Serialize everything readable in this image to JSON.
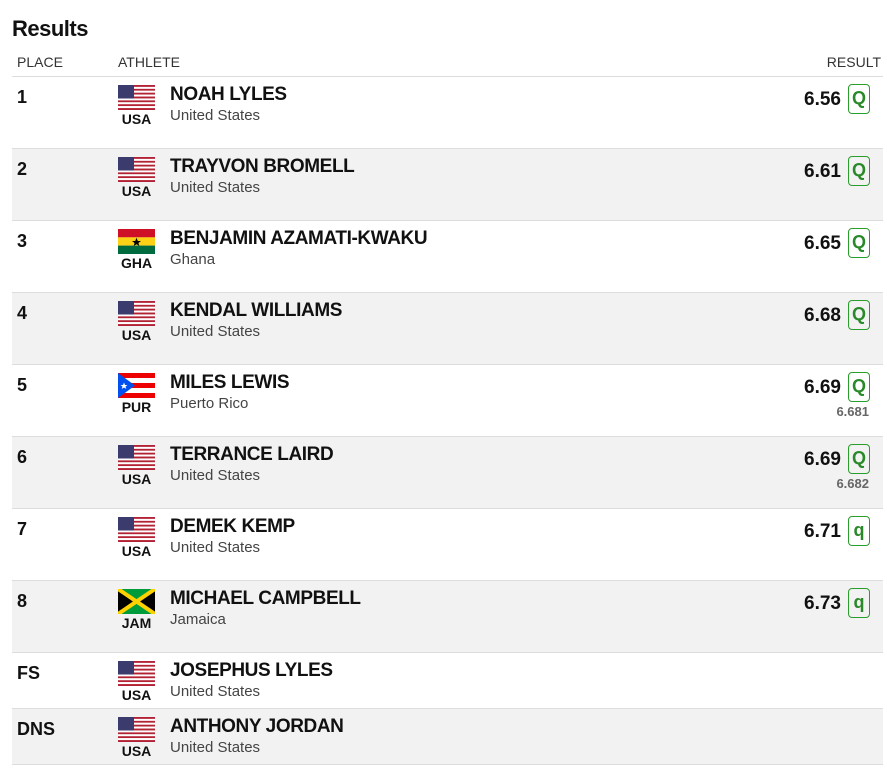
{
  "header": {
    "title": "Results"
  },
  "table": {
    "columns": [
      "PLACE",
      "ATHLETE",
      "RESULT"
    ],
    "rows": [
      {
        "place": "1",
        "code": "USA",
        "name": "NOAH LYLES",
        "country": "United States",
        "result": "6.56",
        "qualifier": "Q"
      },
      {
        "place": "2",
        "code": "USA",
        "name": "TRAYVON BROMELL",
        "country": "United States",
        "result": "6.61",
        "qualifier": "Q"
      },
      {
        "place": "3",
        "code": "GHA",
        "name": "BENJAMIN AZAMATI-KWAKU",
        "country": "Ghana",
        "result": "6.65",
        "qualifier": "Q"
      },
      {
        "place": "4",
        "code": "USA",
        "name": "KENDAL WILLIAMS",
        "country": "United States",
        "result": "6.68",
        "qualifier": "Q"
      },
      {
        "place": "5",
        "code": "PUR",
        "name": "MILES LEWIS",
        "country": "Puerto Rico",
        "result": "6.69",
        "qualifier": "Q",
        "tiebreak": "6.681"
      },
      {
        "place": "6",
        "code": "USA",
        "name": "TERRANCE LAIRD",
        "country": "United States",
        "result": "6.69",
        "qualifier": "Q",
        "tiebreak": "6.682"
      },
      {
        "place": "7",
        "code": "USA",
        "name": "DEMEK KEMP",
        "country": "United States",
        "result": "6.71",
        "qualifier": "q"
      },
      {
        "place": "8",
        "code": "JAM",
        "name": "MICHAEL CAMPBELL",
        "country": "Jamaica",
        "result": "6.73",
        "qualifier": "q"
      },
      {
        "place": "FS",
        "code": "USA",
        "name": "JOSEPHUS LYLES",
        "country": "United States"
      },
      {
        "place": "DNS",
        "code": "USA",
        "name": "ANTHONY JORDAN",
        "country": "United States"
      }
    ]
  }
}
